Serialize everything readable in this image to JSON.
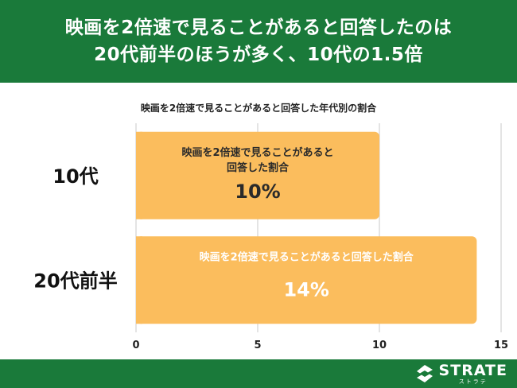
{
  "header": {
    "line1": "映画を2倍速で見ることがあると回答したのは",
    "line2": "20代前半のほうが多く、10代の1.5倍"
  },
  "chart_data": {
    "type": "bar",
    "orientation": "horizontal",
    "title": "映画を2倍速で見ることがあると回答した年代別の割合",
    "categories": [
      "10代",
      "20代前半"
    ],
    "values": [
      10,
      14
    ],
    "bar_labels": [
      [
        "映画を2倍速で見ることがあると",
        "回答した割合"
      ],
      [
        "映画を2倍速で見ることがあると回答した割合"
      ]
    ],
    "value_labels": [
      "10%",
      "14%"
    ],
    "xlim": [
      0,
      15
    ],
    "xticks": [
      0,
      5,
      10,
      15
    ],
    "xtick_labels": [
      "0",
      "5",
      "10",
      "15"
    ],
    "xlabel": "",
    "ylabel": "",
    "grid": "vertical",
    "bar_color": "#fbbd5d",
    "grid_color": "#c9c9c9"
  },
  "footer": {
    "logo_text": "STRATE",
    "logo_sub": "ストラテ",
    "logo_icon": "strate-logo-icon",
    "background": "#1a7a3a"
  }
}
